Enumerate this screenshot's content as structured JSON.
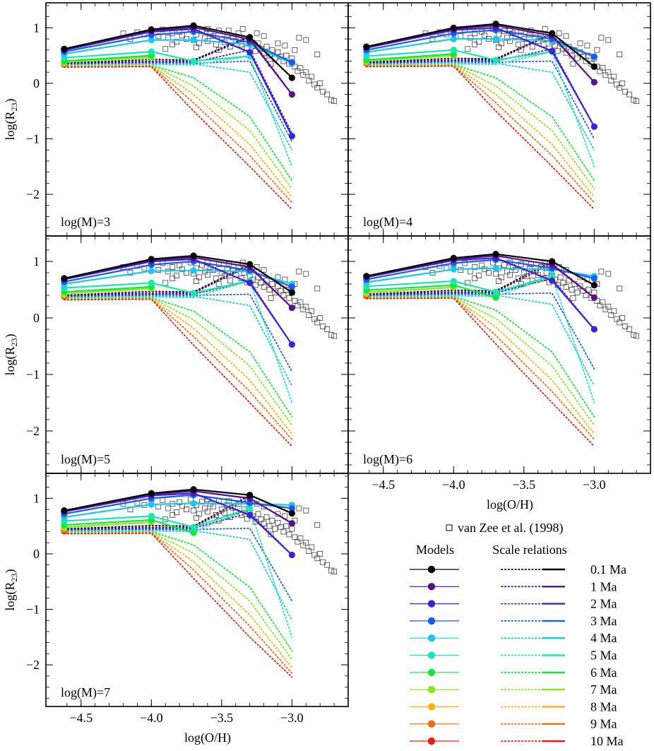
{
  "chart_data": {
    "type": "line",
    "x_label": "log(O/H)",
    "y_label_main": "log(R",
    "y_label_sub": "23",
    "y_label_close": ")",
    "x_range": [
      -4.75,
      -2.6
    ],
    "y_range": [
      -2.75,
      1.45
    ],
    "x_ticks": [
      {
        "value": -4.5,
        "label": "−4.5"
      },
      {
        "value": -4.0,
        "label": "−4.0"
      },
      {
        "value": -3.5,
        "label": "−3.5"
      },
      {
        "value": -3.0,
        "label": "−3.0"
      }
    ],
    "y_ticks": [
      {
        "value": 1,
        "label": "1"
      },
      {
        "value": 0,
        "label": "0"
      },
      {
        "value": -1,
        "label": "−1"
      },
      {
        "value": -2,
        "label": "−2"
      }
    ],
    "x": [
      -4.62,
      -4.0,
      -3.7,
      -3.3,
      -3.0
    ],
    "ages": [
      "0.1 Ma",
      "1 Ma",
      "2 Ma",
      "3 Ma",
      "4 Ma",
      "5 Ma",
      "6 Ma",
      "7 Ma",
      "8 Ma",
      "9 Ma",
      "10 Ma"
    ],
    "colors": [
      "#000000",
      "#5a0f8c",
      "#3a22d6",
      "#1a5cf0",
      "#1ac8ee",
      "#1ae8b0",
      "#12e83a",
      "#8ae81a",
      "#f0b414",
      "#f06a12",
      "#e81e12"
    ],
    "observations_label": "van Zee et al. (1998)",
    "observations": [
      [
        -4.1,
        0.92
      ],
      [
        -4.05,
        0.88
      ],
      [
        -4.0,
        0.95
      ],
      [
        -3.95,
        0.85
      ],
      [
        -3.92,
        0.97
      ],
      [
        -3.88,
        0.82
      ],
      [
        -3.85,
        0.9
      ],
      [
        -3.82,
        0.75
      ],
      [
        -3.8,
        0.93
      ],
      [
        -3.78,
        0.86
      ],
      [
        -3.75,
        0.8
      ],
      [
        -3.72,
        0.98
      ],
      [
        -3.7,
        0.78
      ],
      [
        -3.68,
        0.88
      ],
      [
        -3.66,
        0.72
      ],
      [
        -3.64,
        0.94
      ],
      [
        -3.62,
        0.82
      ],
      [
        -3.6,
        0.76
      ],
      [
        -3.58,
        0.9
      ],
      [
        -3.56,
        0.85
      ],
      [
        -3.54,
        0.7
      ],
      [
        -3.52,
        0.95
      ],
      [
        -3.5,
        0.8
      ],
      [
        -3.48,
        0.74
      ],
      [
        -3.46,
        0.88
      ],
      [
        -3.44,
        0.66
      ],
      [
        -3.42,
        0.83
      ],
      [
        -3.4,
        0.76
      ],
      [
        -3.38,
        0.9
      ],
      [
        -3.36,
        0.7
      ],
      [
        -3.34,
        0.8
      ],
      [
        -3.32,
        0.63
      ],
      [
        -3.3,
        0.75
      ],
      [
        -3.28,
        0.68
      ],
      [
        -3.26,
        0.58
      ],
      [
        -3.24,
        0.72
      ],
      [
        -3.22,
        0.62
      ],
      [
        -3.2,
        0.55
      ],
      [
        -3.18,
        0.66
      ],
      [
        -3.16,
        0.5
      ],
      [
        -3.14,
        0.6
      ],
      [
        -3.12,
        0.45
      ],
      [
        -3.1,
        0.56
      ],
      [
        -3.08,
        0.48
      ],
      [
        -3.06,
        0.4
      ],
      [
        -3.04,
        0.5
      ],
      [
        -3.02,
        0.35
      ],
      [
        -3.0,
        0.45
      ],
      [
        -2.98,
        0.3
      ],
      [
        -2.96,
        0.22
      ],
      [
        -2.94,
        0.28
      ],
      [
        -2.92,
        0.15
      ],
      [
        -2.9,
        0.2
      ],
      [
        -2.88,
        0.05
      ],
      [
        -2.86,
        0.12
      ],
      [
        -2.84,
        -0.02
      ],
      [
        -2.82,
        -0.08
      ],
      [
        -2.8,
        0.0
      ],
      [
        -2.78,
        -0.15
      ],
      [
        -2.75,
        -0.2
      ],
      [
        -2.72,
        -0.3
      ],
      [
        -2.7,
        -0.32
      ],
      [
        -2.95,
        0.82
      ],
      [
        -2.9,
        0.78
      ],
      [
        -2.82,
        0.52
      ],
      [
        -3.45,
        0.95
      ],
      [
        -3.6,
        0.98
      ],
      [
        -3.2,
        0.85
      ],
      [
        -3.05,
        0.68
      ],
      [
        -4.15,
        0.8
      ],
      [
        -4.2,
        0.9
      ],
      [
        -3.9,
        0.62
      ],
      [
        -3.52,
        0.6
      ],
      [
        -3.35,
        0.98
      ],
      [
        -2.98,
        0.6
      ],
      [
        -3.1,
        0.72
      ],
      [
        -3.25,
        0.9
      ],
      [
        -3.68,
        0.65
      ],
      [
        -3.15,
        0.35
      ],
      [
        -3.85,
        0.7
      ]
    ],
    "panels": [
      {
        "label": "log(M)=3",
        "series_y": [
          [
            0.62,
            0.97,
            1.04,
            0.83,
            0.1
          ],
          [
            0.61,
            0.95,
            1.01,
            0.79,
            -0.2
          ],
          [
            0.6,
            0.93,
            0.98,
            0.56,
            -0.95
          ],
          [
            0.57,
            0.87,
            0.93,
            0.74,
            0.38
          ],
          [
            0.53,
            0.78,
            0.78,
            0.7,
            0.36
          ],
          [
            0.46,
            0.57,
            0.4,
            0.49,
            null
          ],
          [
            0.4,
            0.5,
            null,
            null,
            null
          ],
          [
            0.38,
            0.47,
            null,
            null,
            null
          ],
          [
            0.36,
            null,
            null,
            null,
            null
          ],
          [
            0.35,
            null,
            null,
            null,
            null
          ],
          [
            0.34,
            null,
            null,
            null,
            null
          ]
        ],
        "scale_y": [
          [
            0.36,
            0.43,
            0.42,
            0.85,
            0.1
          ],
          [
            0.35,
            0.4,
            0.4,
            0.83,
            -0.2
          ],
          [
            0.35,
            0.38,
            0.38,
            0.6,
            -0.9
          ],
          [
            0.33,
            0.36,
            0.36,
            0.4,
            -1.05
          ],
          [
            0.33,
            0.35,
            0.35,
            0.2,
            -1.2
          ],
          [
            0.32,
            0.34,
            0.33,
            0.49,
            -1.5
          ],
          [
            0.31,
            0.33,
            0.1,
            -0.6,
            -1.75
          ],
          [
            0.31,
            0.33,
            -0.05,
            -0.85,
            -1.9
          ],
          [
            0.3,
            0.32,
            -0.2,
            -1.1,
            -2.05
          ],
          [
            0.3,
            0.31,
            -0.35,
            -1.3,
            -2.15
          ],
          [
            0.29,
            0.3,
            -0.5,
            -1.5,
            -2.27
          ]
        ]
      },
      {
        "label": "log(M)=4",
        "series_y": [
          [
            0.66,
            1.0,
            1.07,
            0.9,
            0.3
          ],
          [
            0.65,
            0.98,
            1.04,
            0.86,
            0.02
          ],
          [
            0.64,
            0.96,
            1.0,
            0.58,
            -0.78
          ],
          [
            0.6,
            0.9,
            0.96,
            0.8,
            0.48
          ],
          [
            0.56,
            0.8,
            0.8,
            0.77,
            0.48
          ],
          [
            0.49,
            0.6,
            0.42,
            0.57,
            null
          ],
          [
            0.42,
            0.53,
            null,
            null,
            null
          ],
          [
            0.4,
            0.5,
            null,
            null,
            null
          ],
          [
            0.38,
            null,
            null,
            null,
            null
          ],
          [
            0.37,
            null,
            null,
            null,
            null
          ],
          [
            0.36,
            null,
            null,
            null,
            null
          ]
        ],
        "scale_y": [
          [
            0.38,
            0.45,
            0.44,
            0.9,
            0.3
          ],
          [
            0.37,
            0.42,
            0.42,
            0.88,
            0.02
          ],
          [
            0.36,
            0.4,
            0.4,
            0.62,
            -0.78
          ],
          [
            0.35,
            0.38,
            0.38,
            0.4,
            -1.0
          ],
          [
            0.34,
            0.37,
            0.36,
            0.2,
            -1.2
          ],
          [
            0.33,
            0.35,
            0.34,
            0.57,
            -1.5
          ],
          [
            0.33,
            0.34,
            0.1,
            -0.6,
            -1.75
          ],
          [
            0.32,
            0.34,
            -0.05,
            -0.85,
            -1.9
          ],
          [
            0.31,
            0.33,
            -0.2,
            -1.1,
            -2.05
          ],
          [
            0.31,
            0.32,
            -0.35,
            -1.3,
            -2.15
          ],
          [
            0.3,
            0.31,
            -0.5,
            -1.5,
            -2.27
          ]
        ]
      },
      {
        "label": "log(M)=5",
        "series_y": [
          [
            0.7,
            1.04,
            1.1,
            0.95,
            0.45
          ],
          [
            0.69,
            1.02,
            1.07,
            0.9,
            0.18
          ],
          [
            0.68,
            1.0,
            1.04,
            0.62,
            -0.47
          ],
          [
            0.64,
            0.94,
            1.0,
            0.84,
            0.55
          ],
          [
            0.6,
            0.83,
            0.84,
            0.82,
            0.6
          ],
          [
            0.53,
            0.62,
            0.44,
            0.66,
            null
          ],
          [
            0.46,
            0.55,
            null,
            null,
            null
          ],
          [
            0.43,
            0.52,
            null,
            null,
            null
          ],
          [
            0.41,
            null,
            null,
            null,
            null
          ],
          [
            0.39,
            null,
            null,
            null,
            null
          ],
          [
            0.38,
            null,
            null,
            null,
            null
          ]
        ],
        "scale_y": [
          [
            0.4,
            0.47,
            0.46,
            0.95,
            0.45
          ],
          [
            0.39,
            0.44,
            0.44,
            0.92,
            0.18
          ],
          [
            0.38,
            0.42,
            0.42,
            0.65,
            -0.47
          ],
          [
            0.37,
            0.4,
            0.4,
            0.42,
            -0.95
          ],
          [
            0.36,
            0.38,
            0.38,
            0.22,
            -1.2
          ],
          [
            0.35,
            0.37,
            0.36,
            0.66,
            -1.5
          ],
          [
            0.35,
            0.36,
            0.12,
            -0.6,
            -1.75
          ],
          [
            0.34,
            0.35,
            -0.03,
            -0.85,
            -1.9
          ],
          [
            0.33,
            0.34,
            -0.18,
            -1.1,
            -2.05
          ],
          [
            0.33,
            0.34,
            -0.33,
            -1.3,
            -2.15
          ],
          [
            0.32,
            0.33,
            -0.48,
            -1.5,
            -2.27
          ]
        ]
      },
      {
        "label": "log(M)=6",
        "series_y": [
          [
            0.74,
            1.06,
            1.13,
            1.0,
            0.58
          ],
          [
            0.73,
            1.04,
            1.1,
            0.94,
            0.36
          ],
          [
            0.72,
            1.02,
            1.06,
            0.66,
            -0.2
          ],
          [
            0.68,
            0.97,
            1.03,
            0.88,
            0.7
          ],
          [
            0.63,
            0.86,
            0.88,
            0.86,
            0.74
          ],
          [
            0.56,
            0.65,
            0.46,
            0.74,
            null
          ],
          [
            0.49,
            0.58,
            0.36,
            null,
            null
          ],
          [
            0.45,
            0.54,
            null,
            null,
            null
          ],
          [
            0.43,
            null,
            null,
            null,
            null
          ],
          [
            0.41,
            null,
            null,
            null,
            null
          ],
          [
            0.39,
            null,
            null,
            null,
            null
          ]
        ],
        "scale_y": [
          [
            0.42,
            0.49,
            0.48,
            1.0,
            0.58
          ],
          [
            0.41,
            0.46,
            0.46,
            0.96,
            0.36
          ],
          [
            0.4,
            0.44,
            0.44,
            0.7,
            -0.2
          ],
          [
            0.39,
            0.42,
            0.42,
            0.44,
            -0.9
          ],
          [
            0.38,
            0.4,
            0.4,
            0.24,
            -1.2
          ],
          [
            0.37,
            0.39,
            0.38,
            0.74,
            -1.5
          ],
          [
            0.37,
            0.38,
            0.14,
            -0.6,
            -1.75
          ],
          [
            0.36,
            0.37,
            -0.01,
            -0.85,
            -1.9
          ],
          [
            0.35,
            0.36,
            -0.16,
            -1.1,
            -2.05
          ],
          [
            0.35,
            0.36,
            -0.31,
            -1.3,
            -2.15
          ],
          [
            0.34,
            0.35,
            -0.46,
            -1.5,
            -2.27
          ]
        ]
      },
      {
        "label": "log(M)=7",
        "series_y": [
          [
            0.78,
            1.09,
            1.16,
            1.06,
            0.73
          ],
          [
            0.77,
            1.07,
            1.13,
            1.0,
            0.55
          ],
          [
            0.76,
            1.05,
            1.09,
            0.7,
            -0.02
          ],
          [
            0.72,
            1.0,
            1.06,
            0.92,
            0.82
          ],
          [
            0.66,
            0.89,
            0.91,
            0.9,
            0.88
          ],
          [
            0.59,
            0.68,
            0.48,
            0.82,
            null
          ],
          [
            0.52,
            0.61,
            0.38,
            null,
            null
          ],
          [
            0.48,
            0.57,
            null,
            null,
            null
          ],
          [
            0.46,
            null,
            null,
            null,
            null
          ],
          [
            0.43,
            null,
            null,
            null,
            null
          ],
          [
            0.41,
            null,
            null,
            null,
            null
          ]
        ],
        "scale_y": [
          [
            0.45,
            0.51,
            0.5,
            1.05,
            0.73
          ],
          [
            0.44,
            0.48,
            0.48,
            1.0,
            0.55
          ],
          [
            0.43,
            0.46,
            0.46,
            0.74,
            -0.02
          ],
          [
            0.42,
            0.44,
            0.44,
            0.46,
            -0.85
          ],
          [
            0.41,
            0.42,
            0.42,
            0.26,
            -1.2
          ],
          [
            0.4,
            0.41,
            0.4,
            0.82,
            -1.5
          ],
          [
            0.39,
            0.4,
            0.16,
            -0.6,
            -1.75
          ],
          [
            0.38,
            0.39,
            0.01,
            -0.85,
            -1.9
          ],
          [
            0.37,
            0.38,
            -0.14,
            -1.1,
            -2.05
          ],
          [
            0.37,
            0.38,
            -0.29,
            -1.3,
            -2.15
          ],
          [
            0.36,
            0.37,
            -0.44,
            -1.5,
            -2.22
          ]
        ]
      }
    ]
  },
  "legend": {
    "models_header": "Models",
    "scale_header": "Scale relations"
  }
}
